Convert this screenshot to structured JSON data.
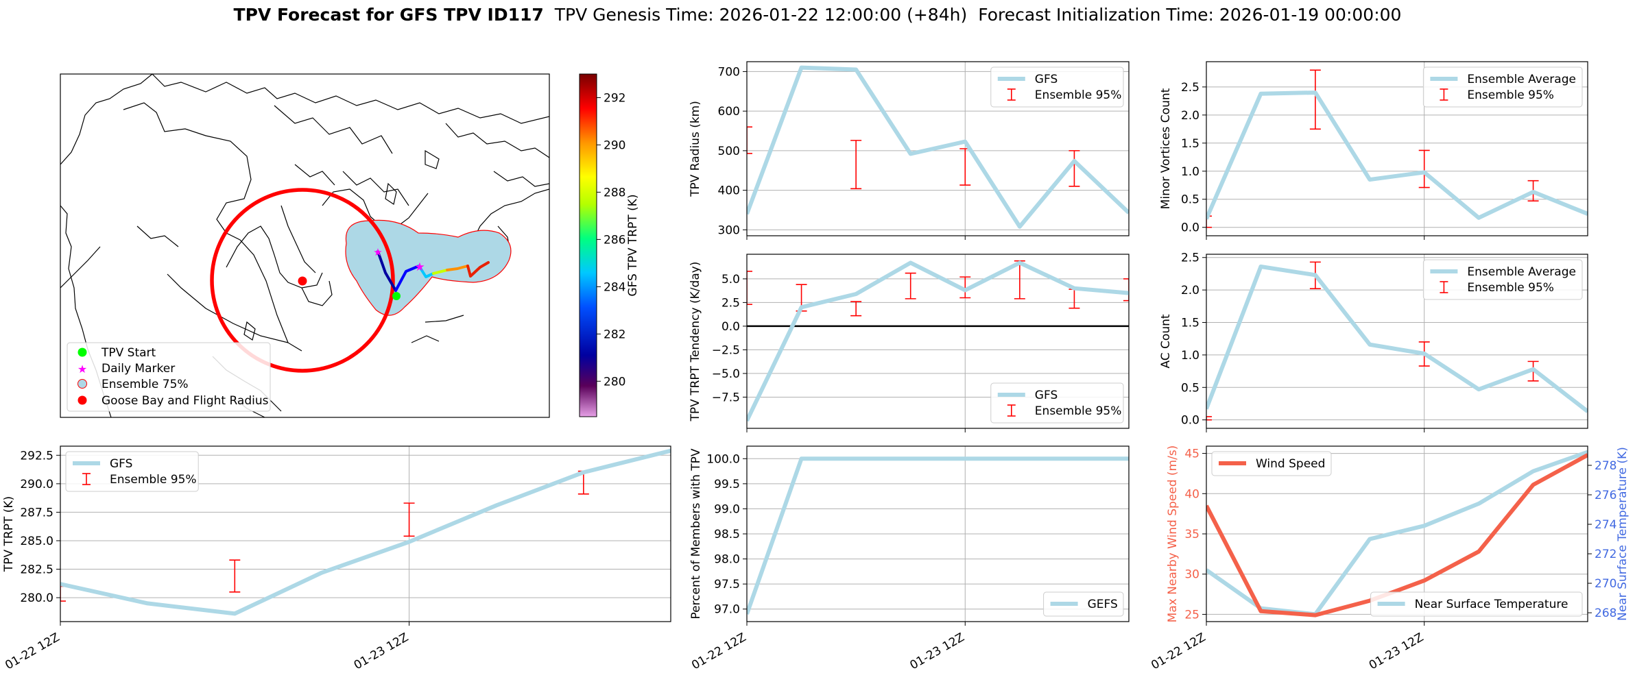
{
  "title": {
    "bold": "TPV Forecast for GFS TPV ID117",
    "genesis": "TPV Genesis Time: 2026-01-22 12:00:00 (+84h)",
    "init": "Forecast Initialization Time: 2026-01-19 00:00:00"
  },
  "colors": {
    "line": "#add8e6",
    "err": "#ff0000",
    "wind": "#f4614a",
    "temp_axis": "#4169e1",
    "map_red": "#ff0000",
    "map_fill": "#add8e6",
    "start": "#00ff00",
    "marker": "#ff00ff"
  },
  "map": {
    "legend": [
      "TPV Start",
      "Daily Marker",
      "Ensemble 75%",
      "Goose Bay and Flight Radius"
    ],
    "colorbar": {
      "label": "GFS TPV TRPT (K)",
      "ticks": [
        "280",
        "282",
        "284",
        "286",
        "288",
        "290",
        "292"
      ],
      "range": [
        278.5,
        293.0
      ]
    }
  },
  "chart_data": [
    {
      "id": "radius",
      "type": "line",
      "ylabel": "TPV Radius (km)",
      "ylim": [
        285,
        725
      ],
      "yticks": [
        300,
        400,
        500,
        600,
        700
      ],
      "ytick_labels": [
        "300",
        "400",
        "500",
        "600",
        "700"
      ],
      "xlim": [
        0,
        1.75
      ],
      "xticks": [
        0,
        1
      ],
      "xtick_labels": [
        "",
        ""
      ],
      "legend_position": "upper right",
      "series": [
        {
          "name": "GFS",
          "x": [
            0,
            0.25,
            0.5,
            0.75,
            1.0,
            1.25,
            1.5,
            1.75
          ],
          "values": [
            340,
            710,
            705,
            492,
            523,
            308,
            474,
            343
          ]
        }
      ],
      "errorbars": {
        "name": "Ensemble 95%",
        "x": [
          0,
          0.5,
          1.0,
          1.5
        ],
        "low": [
          493,
          404,
          413,
          410
        ],
        "high": [
          560,
          526,
          505,
          500
        ]
      }
    },
    {
      "id": "minor_vortices",
      "type": "line",
      "ylabel": "Minor Vortices Count",
      "ylim": [
        -0.15,
        2.95
      ],
      "yticks": [
        0,
        0.5,
        1.0,
        1.5,
        2.0,
        2.5
      ],
      "ytick_labels": [
        "0.0",
        "0.5",
        "1.0",
        "1.5",
        "2.0",
        "2.5"
      ],
      "xlim": [
        0,
        1.75
      ],
      "xticks": [
        0,
        1
      ],
      "xtick_labels": [
        "",
        ""
      ],
      "legend_position": "upper right",
      "series": [
        {
          "name": "Ensemble Average",
          "x": [
            0,
            0.25,
            0.5,
            0.75,
            1.0,
            1.25,
            1.5,
            1.75
          ],
          "values": [
            0.15,
            2.38,
            2.4,
            0.85,
            0.98,
            0.17,
            0.63,
            0.24
          ]
        }
      ],
      "errorbars": {
        "name": "Ensemble 95%",
        "x": [
          0,
          0.5,
          1.0,
          1.5
        ],
        "low": [
          0.0,
          1.75,
          0.71,
          0.47
        ],
        "high": [
          0.2,
          2.8,
          1.37,
          0.83
        ]
      }
    },
    {
      "id": "trpt_tendency",
      "type": "line",
      "ylabel": "TPV TRPT Tendency (K/day)",
      "ylim": [
        -10.8,
        7.6
      ],
      "yticks": [
        -7.5,
        -5.0,
        -2.5,
        0.0,
        2.5,
        5.0
      ],
      "ytick_labels": [
        "−7.5",
        "−5.0",
        "−2.5",
        "0.0",
        "2.5",
        "5.0"
      ],
      "xlim": [
        0,
        1.75
      ],
      "xticks": [
        0,
        1
      ],
      "xtick_labels": [
        "",
        ""
      ],
      "zero_line": true,
      "legend_position": "lower right",
      "series": [
        {
          "name": "GFS",
          "x": [
            0,
            0.25,
            0.5,
            0.75,
            1.0,
            1.25,
            1.5,
            1.75
          ],
          "values": [
            -10.0,
            2.0,
            3.4,
            6.7,
            3.8,
            6.7,
            4.0,
            3.5
          ]
        }
      ],
      "errorbars": {
        "name": "Ensemble 95%",
        "x": [
          0,
          0.25,
          0.5,
          0.75,
          1.0,
          1.25,
          1.5,
          1.75
        ],
        "low": [
          2.3,
          1.6,
          1.1,
          2.9,
          3.0,
          2.9,
          1.9,
          2.7
        ],
        "high": [
          5.8,
          4.4,
          2.6,
          5.6,
          5.2,
          6.9,
          3.9,
          5.0
        ]
      }
    },
    {
      "id": "ac_count",
      "type": "line",
      "ylabel": "AC Count",
      "ylim": [
        -0.13,
        2.55
      ],
      "yticks": [
        0,
        0.5,
        1.0,
        1.5,
        2.0,
        2.5
      ],
      "ytick_labels": [
        "0.0",
        "0.5",
        "1.0",
        "1.5",
        "2.0",
        "2.5"
      ],
      "xlim": [
        0,
        1.75
      ],
      "xticks": [
        0,
        1
      ],
      "xtick_labels": [
        "",
        ""
      ],
      "legend_position": "upper right",
      "series": [
        {
          "name": "Ensemble Average",
          "x": [
            0,
            0.25,
            0.5,
            0.75,
            1.0,
            1.25,
            1.5,
            1.75
          ],
          "values": [
            0.17,
            2.36,
            2.23,
            1.16,
            1.02,
            0.47,
            0.78,
            0.13
          ]
        }
      ],
      "errorbars": {
        "name": "Ensemble 95%",
        "x": [
          0,
          0.5,
          1.0,
          1.5
        ],
        "low": [
          0.0,
          2.02,
          0.83,
          0.6
        ],
        "high": [
          0.05,
          2.43,
          1.2,
          0.9
        ]
      }
    },
    {
      "id": "trpt",
      "type": "line",
      "ylabel": "TPV TRPT (K)",
      "ylim": [
        277.9,
        293.3
      ],
      "yticks": [
        280,
        282.5,
        285,
        287.5,
        290,
        292.5
      ],
      "ytick_labels": [
        "280.0",
        "282.5",
        "285.0",
        "287.5",
        "290.0",
        "292.5"
      ],
      "xlim": [
        0,
        1.75
      ],
      "xticks": [
        0,
        1
      ],
      "xtick_labels": [
        "01-22 12Z",
        "01-23 12Z"
      ],
      "legend_position": "upper left",
      "series": [
        {
          "name": "GFS",
          "x": [
            0,
            0.25,
            0.5,
            0.75,
            1.0,
            1.25,
            1.5,
            1.75
          ],
          "values": [
            281.2,
            279.5,
            278.6,
            282.2,
            284.9,
            288.1,
            291.0,
            292.9
          ]
        }
      ],
      "errorbars": {
        "name": "Ensemble 95%",
        "x": [
          0,
          0.5,
          1.0,
          1.5
        ],
        "low": [
          279.7,
          280.5,
          285.4,
          289.1
        ],
        "high": [
          281.0,
          283.3,
          288.3,
          291.1
        ]
      }
    },
    {
      "id": "percent_members",
      "type": "line",
      "ylabel": "Percent of Members with TPV",
      "ylim": [
        96.75,
        100.25
      ],
      "yticks": [
        97.0,
        97.5,
        98.0,
        98.5,
        99.0,
        99.5,
        100.0
      ],
      "ytick_labels": [
        "97.0",
        "97.5",
        "98.0",
        "98.5",
        "99.0",
        "99.5",
        "100.0"
      ],
      "xlim": [
        0,
        1.75
      ],
      "xticks": [
        0,
        1
      ],
      "xtick_labels": [
        "01-22 12Z",
        "01-23 12Z"
      ],
      "legend_position": "lower right",
      "series": [
        {
          "name": "GEFS",
          "x": [
            0,
            0.25,
            0.5,
            0.75,
            1.0,
            1.25,
            1.5,
            1.75
          ],
          "values": [
            96.9,
            100.0,
            100.0,
            100.0,
            100.0,
            100.0,
            100.0,
            100.0
          ]
        }
      ]
    },
    {
      "id": "wind_temp",
      "type": "line",
      "ylabel": "Max Nearby Wind Speed (m/s)",
      "ylabel_right": "Near Surface Temperature (K)",
      "ylim": [
        24.1,
        45.9
      ],
      "yticks": [
        25,
        30,
        35,
        40,
        45
      ],
      "ytick_labels": [
        "25",
        "30",
        "35",
        "40",
        "45"
      ],
      "ylim_right": [
        267.4,
        279.3
      ],
      "yticks_right": [
        268,
        270,
        272,
        274,
        276,
        278
      ],
      "ytick_labels_right": [
        "268",
        "270",
        "272",
        "274",
        "276",
        "278"
      ],
      "xlim": [
        0,
        1.75
      ],
      "xticks": [
        0,
        1
      ],
      "xtick_labels": [
        "01-22 12Z",
        "01-23 12Z"
      ],
      "series": [
        {
          "name": "Wind Speed",
          "axis": "left",
          "legend_position": "upper left",
          "x": [
            0,
            0.25,
            0.5,
            0.75,
            1.0,
            1.25,
            1.5,
            1.75
          ],
          "values": [
            38.5,
            25.4,
            24.9,
            26.7,
            29.2,
            32.8,
            41.1,
            44.8
          ]
        },
        {
          "name": "Near Surface Temperature",
          "axis": "right",
          "legend_position": "lower right",
          "x": [
            0,
            0.25,
            0.5,
            0.75,
            1.0,
            1.25,
            1.5,
            1.75
          ],
          "values": [
            270.9,
            268.3,
            267.9,
            273.0,
            273.9,
            275.4,
            277.6,
            278.9
          ]
        }
      ]
    }
  ]
}
